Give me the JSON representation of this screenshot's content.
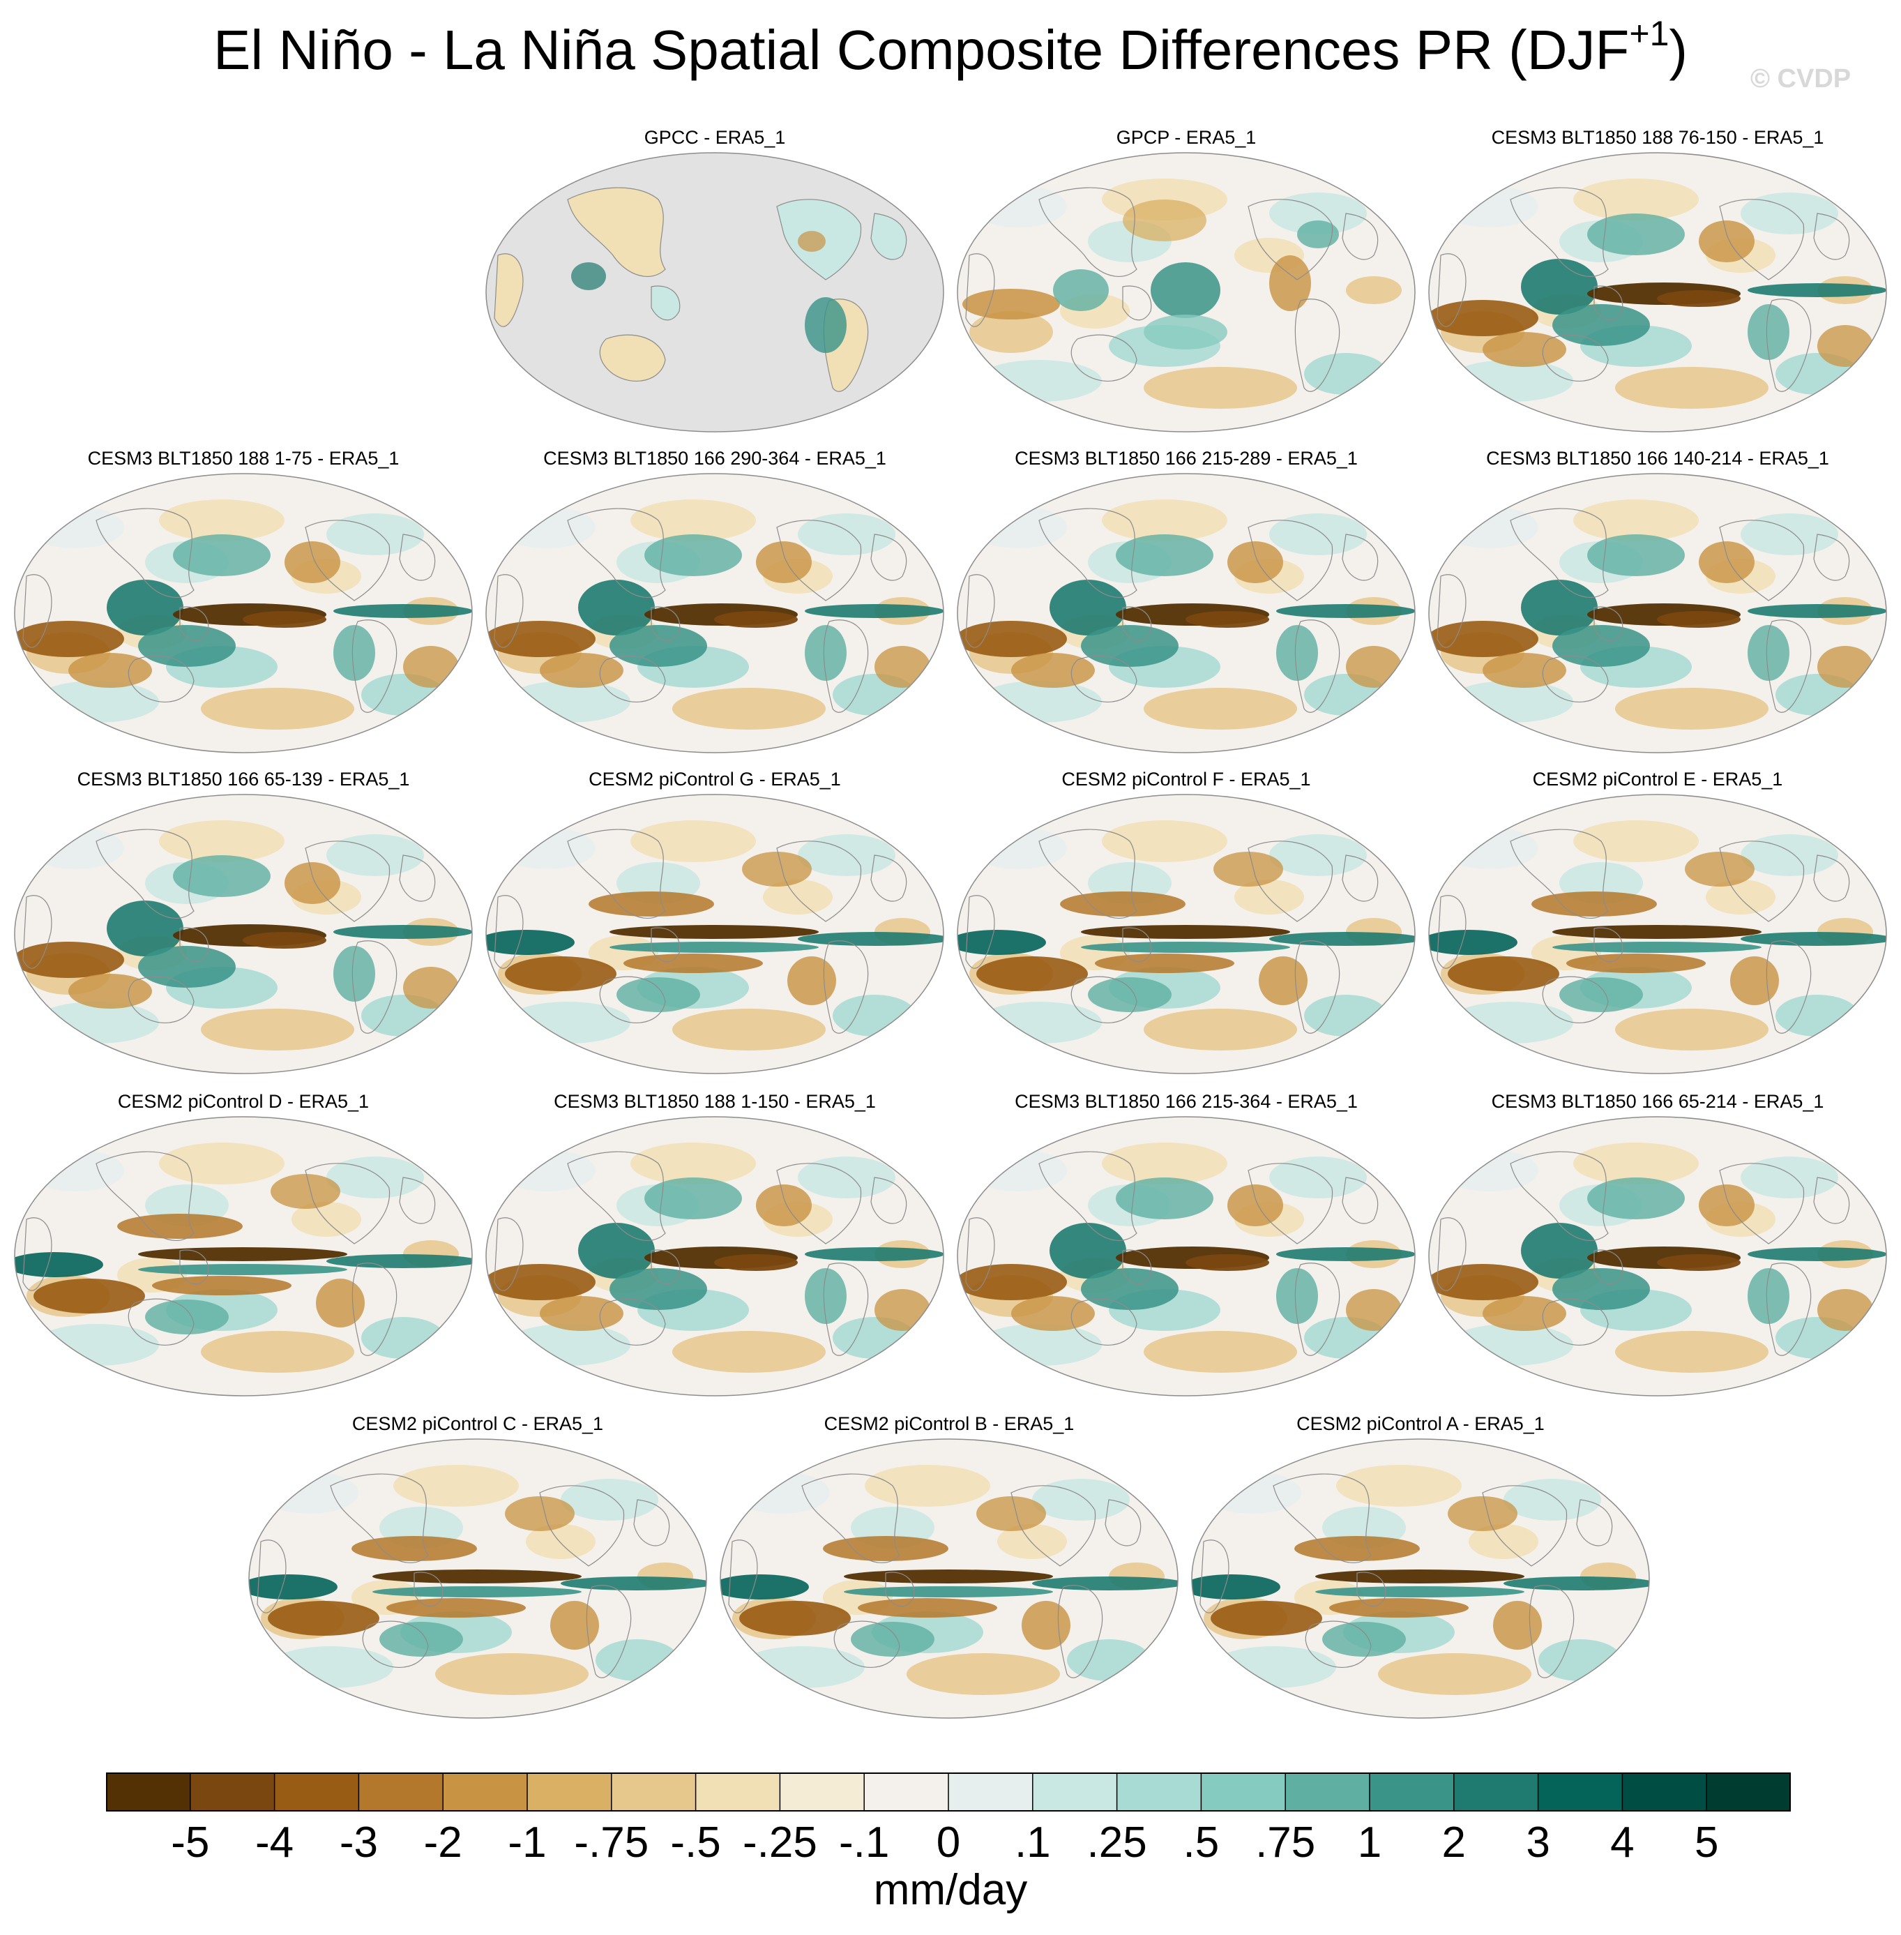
{
  "title": {
    "text": "El Niño - La Niña Spatial Composite Differences PR (DJF",
    "superscript": "+1",
    "close": ")"
  },
  "watermark": "© CVDP",
  "chart_data": {
    "type": "heatmap",
    "title": "El Niño - La Niña Spatial Composite Differences PR (DJF+1)",
    "variable": "PR",
    "season": "DJF+1",
    "units": "mm/day",
    "projection": "global map panels",
    "panels": [
      {
        "title": "GPCC - ERA5_1",
        "pattern": "land_only"
      },
      {
        "title": "GPCP - ERA5_1",
        "pattern": "weak"
      },
      {
        "title": "CESM3 BLT1850 188 76-150 - ERA5_1",
        "pattern": "strong_tongue"
      },
      {
        "title": "CESM3 BLT1850 188 1-75 - ERA5_1",
        "pattern": "strong_tongue"
      },
      {
        "title": "CESM3 BLT1850 166 290-364 - ERA5_1",
        "pattern": "strong_tongue"
      },
      {
        "title": "CESM3 BLT1850 166 215-289 - ERA5_1",
        "pattern": "strong_tongue"
      },
      {
        "title": "CESM3 BLT1850 166 140-214 - ERA5_1",
        "pattern": "strong_tongue"
      },
      {
        "title": "CESM3 BLT1850 166 65-139 - ERA5_1",
        "pattern": "strong_tongue"
      },
      {
        "title": "CESM2 piControl G - ERA5_1",
        "pattern": "banded"
      },
      {
        "title": "CESM2 piControl F - ERA5_1",
        "pattern": "banded"
      },
      {
        "title": "CESM2 piControl E - ERA5_1",
        "pattern": "banded"
      },
      {
        "title": "CESM2 piControl D - ERA5_1",
        "pattern": "banded"
      },
      {
        "title": "CESM3 BLT1850 188 1-150 - ERA5_1",
        "pattern": "strong_tongue"
      },
      {
        "title": "CESM3 BLT1850 166 215-364 - ERA5_1",
        "pattern": "strong_tongue"
      },
      {
        "title": "CESM3 BLT1850 166 65-214 - ERA5_1",
        "pattern": "strong_tongue"
      },
      {
        "title": "CESM2 piControl C - ERA5_1",
        "pattern": "banded"
      },
      {
        "title": "CESM2 piControl B - ERA5_1",
        "pattern": "banded"
      },
      {
        "title": "CESM2 piControl A - ERA5_1",
        "pattern": "banded"
      }
    ],
    "colorbar": {
      "label": "mm/day",
      "tick_labels": [
        "-5",
        "-4",
        "-3",
        "-2",
        "-1",
        "-.75",
        "-.5",
        "-.25",
        "-.1",
        "0",
        ".1",
        ".25",
        ".5",
        ".75",
        "1",
        "2",
        "3",
        "4",
        "5"
      ],
      "levels": [
        -5,
        -4,
        -3,
        -2,
        -1,
        -0.75,
        -0.5,
        -0.25,
        -0.1,
        0,
        0.1,
        0.25,
        0.5,
        0.75,
        1,
        2,
        3,
        4,
        5
      ],
      "colors": [
        "#543005",
        "#7a4710",
        "#995c14",
        "#b4782c",
        "#c89343",
        "#d9b064",
        "#e6c78c",
        "#f1dfb5",
        "#f5ecd6",
        "#f4f1ec",
        "#e6efee",
        "#c9e8e3",
        "#a7dbd3",
        "#86cbbf",
        "#5fb0a3",
        "#3a9488",
        "#1f7b70",
        "#04645a",
        "#004d43",
        "#003c30"
      ]
    }
  }
}
